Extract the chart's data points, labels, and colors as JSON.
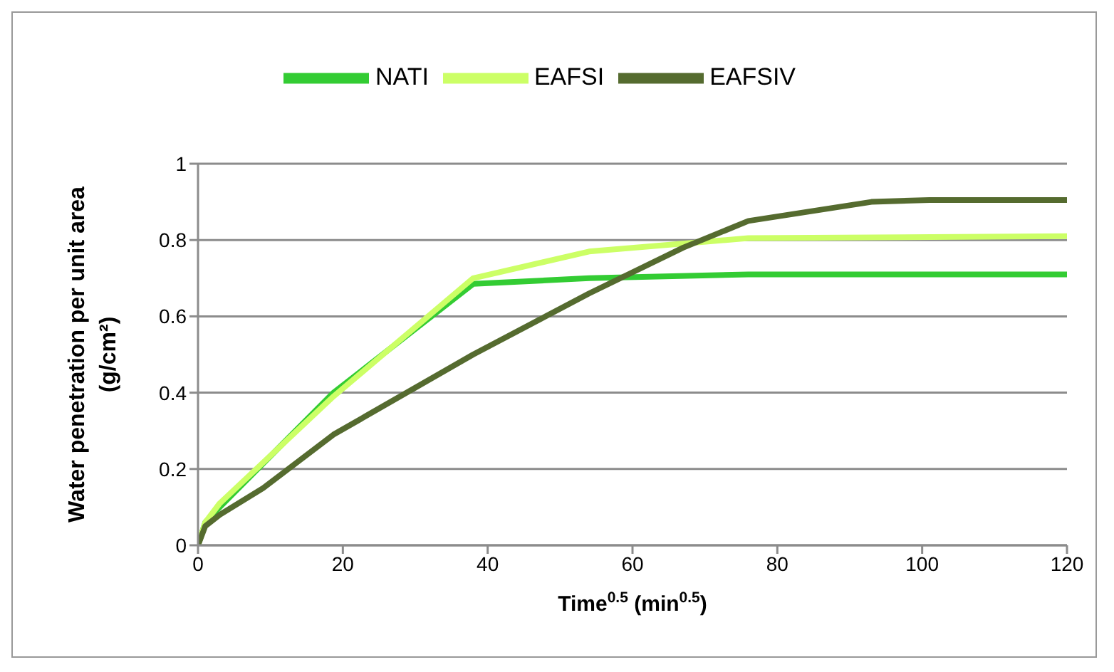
{
  "chart_data": {
    "type": "line",
    "xlabel": "Time$^{0.5}$ (min$^{0.5}$)",
    "ylabel": "Water penetration per unit area (g/cm²)",
    "xlim": [
      0,
      120
    ],
    "xticks": [
      0,
      20,
      40,
      60,
      80,
      100,
      120
    ],
    "ylim": [
      0,
      1
    ],
    "yticks": [
      0,
      0.2,
      0.4,
      0.6,
      0.8,
      1
    ],
    "grid": "y",
    "legend": "top",
    "marker": "none",
    "line_style": "solid",
    "series": [
      {
        "name": "NATI",
        "color": "#33cc33",
        "x": [
          0,
          1,
          3,
          18.7,
          38,
          54,
          76,
          120
        ],
        "values": [
          0,
          0.06,
          0.1,
          0.4,
          0.685,
          0.7,
          0.71,
          0.71
        ]
      },
      {
        "name": "EAFSI",
        "color": "#ccff66",
        "x": [
          0,
          1,
          3,
          18.7,
          38,
          54,
          76,
          120
        ],
        "values": [
          0,
          0.06,
          0.11,
          0.39,
          0.7,
          0.77,
          0.805,
          0.81
        ]
      },
      {
        "name": "EAFSIV",
        "color": "#556b2f",
        "x": [
          0,
          1,
          3,
          9,
          18.7,
          38,
          54,
          67,
          76,
          93,
          101,
          120
        ],
        "values": [
          0,
          0.05,
          0.08,
          0.15,
          0.29,
          0.5,
          0.66,
          0.78,
          0.85,
          0.9,
          0.905,
          0.905
        ]
      }
    ]
  }
}
